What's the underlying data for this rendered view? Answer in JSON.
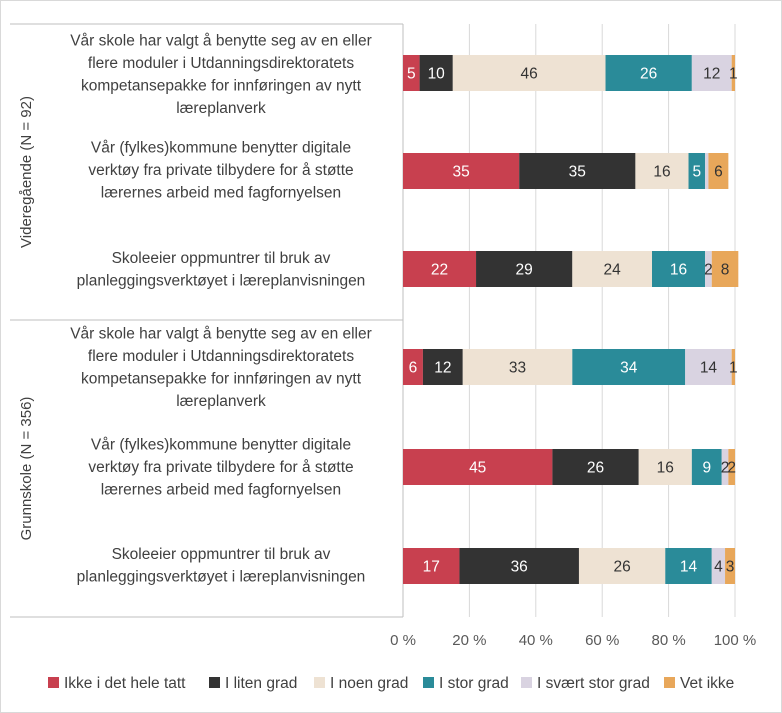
{
  "chart_data": {
    "type": "bar",
    "orientation": "horizontal",
    "stacked": "percent",
    "groups": [
      {
        "label": "Videregående (N = 92)",
        "categories": [
          "Vår skole har valgt å benytte seg av en eller flere moduler i Utdanningsdirektoratets kompetansepakke for innføringen av nytt læreplanverk",
          "Vår (fylkes)kommune benytter digitale verktøy fra private tilbydere for å støtte lærernes arbeid med fagfornyelsen",
          "Skoleeier oppmuntrer til bruk av planleggingsverktøyet i læreplanvisningen"
        ],
        "category_lines": [
          [
            "Vår skole har valgt å benytte seg av en eller",
            "flere moduler i Utdanningsdirektoratets",
            "kompetansepakke for innføringen av nytt",
            "læreplanverk"
          ],
          [
            "Vår (fylkes)kommune benytter digitale",
            "verktøy fra private tilbydere for å støtte",
            "lærernes arbeid med fagfornyelsen"
          ],
          [
            "Skoleeier oppmuntrer til bruk av",
            "planleggingsverktøyet i læreplanvisningen"
          ]
        ],
        "values": [
          [
            5,
            10,
            46,
            26,
            12,
            1
          ],
          [
            35,
            35,
            16,
            5,
            1,
            6
          ],
          [
            22,
            29,
            24,
            16,
            2,
            8
          ]
        ]
      },
      {
        "label": "Grunnskole (N = 356)",
        "categories": [
          "Vår skole har valgt å benytte seg av en eller flere moduler i Utdanningsdirektoratets kompetansepakke for innføringen av nytt læreplanverk",
          "Vår (fylkes)kommune benytter digitale verktøy fra private tilbydere for å støtte lærernes arbeid med fagfornyelsen",
          "Skoleeier oppmuntrer til bruk av planleggingsverktøyet i læreplanvisningen"
        ],
        "category_lines": [
          [
            "Vår skole har valgt å benytte seg av en eller",
            "flere moduler i Utdanningsdirektoratets",
            "kompetansepakke for innføringen av nytt",
            "læreplanverk"
          ],
          [
            "Vår (fylkes)kommune benytter digitale",
            "verktøy fra private tilbydere for å støtte",
            "lærernes arbeid med fagfornyelsen"
          ],
          [
            "Skoleeier oppmuntrer til bruk av",
            "planleggingsverktøyet i læreplanvisningen"
          ]
        ],
        "values": [
          [
            6,
            12,
            33,
            34,
            14,
            1
          ],
          [
            45,
            26,
            16,
            9,
            2,
            2
          ],
          [
            17,
            36,
            26,
            14,
            4,
            3
          ]
        ]
      }
    ],
    "segment_labels": [
      [
        "5",
        "10",
        "46",
        "26",
        "12",
        "1"
      ],
      [
        "35",
        "35",
        "16",
        "5",
        "",
        "6"
      ],
      [
        "22",
        "29",
        "24",
        "16",
        "2",
        "8"
      ],
      [
        "6",
        "12",
        "33",
        "34",
        "14",
        "1"
      ],
      [
        "45",
        "26",
        "16",
        "9",
        "2",
        "2"
      ],
      [
        "17",
        "36",
        "26",
        "14",
        "4",
        "3"
      ]
    ],
    "series": [
      {
        "name": "Ikke i det hele tatt",
        "color": "#C8404F"
      },
      {
        "name": "I liten grad",
        "color": "#333333"
      },
      {
        "name": "I noen grad",
        "color": "#EEE2D3"
      },
      {
        "name": "I stor grad",
        "color": "#2A8B99"
      },
      {
        "name": "I svært stor grad",
        "color": "#D9D3E1"
      },
      {
        "name": "Vet ikke",
        "color": "#E8A75A"
      }
    ],
    "label_colors": [
      "#FFFFFF",
      "#FFFFFF",
      "#333333",
      "#FFFFFF",
      "#333333",
      "#333333"
    ],
    "xlim": [
      0,
      100
    ],
    "xticks": [
      "0 %",
      "20 %",
      "40 %",
      "60 %",
      "80 %",
      "100 %"
    ],
    "legend_position": "bottom",
    "grid": true
  }
}
